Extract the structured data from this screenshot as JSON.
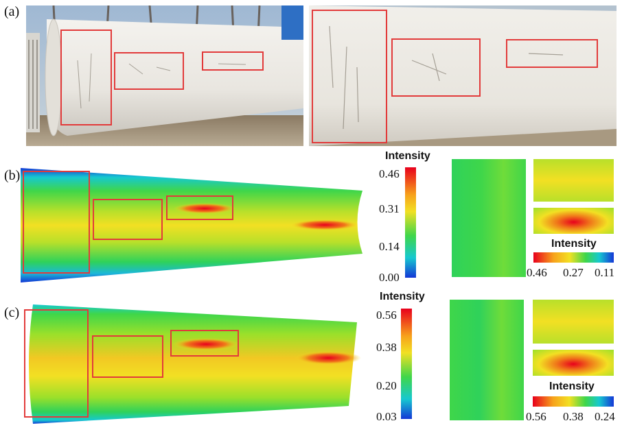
{
  "panels": {
    "a": {
      "label": "(a)"
    },
    "b": {
      "label": "(b)",
      "colorbar": {
        "title": "Intensity",
        "ticks": [
          "0.46",
          "0.31",
          "0.14",
          "0.00"
        ]
      },
      "detail_colorbar": {
        "title": "Intensity",
        "ticks": [
          "0.46",
          "0.27",
          "0.11"
        ]
      }
    },
    "c": {
      "label": "(c)",
      "colorbar": {
        "title": "Intensity",
        "ticks": [
          "0.56",
          "0.38",
          "0.20",
          "0.03"
        ]
      },
      "detail_colorbar": {
        "title": "Intensity",
        "ticks": [
          "0.56",
          "0.38",
          "0.24"
        ]
      }
    }
  },
  "colors": {
    "highlight_box": "#e23a3a",
    "scale_high": "#e8001c",
    "scale_mid": "#f5e617",
    "scale_low": "#1437d6"
  }
}
